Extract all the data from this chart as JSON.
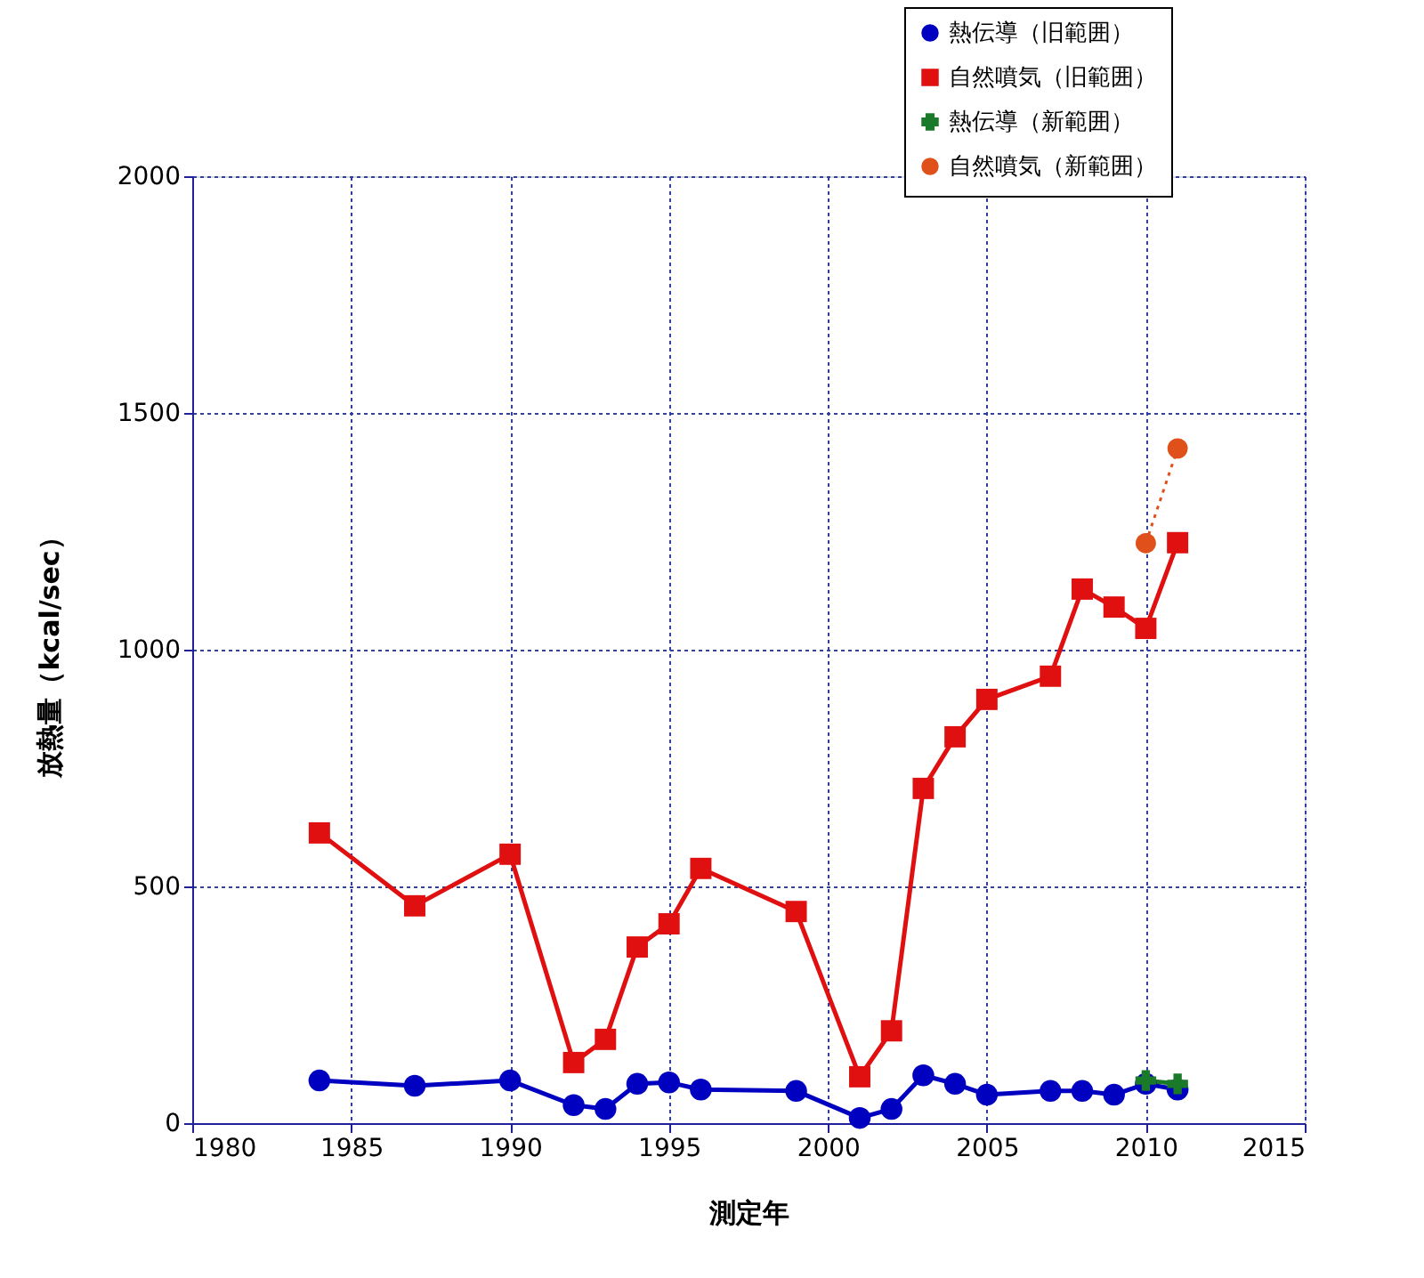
{
  "chart_data": {
    "type": "line",
    "xlabel": "測定年",
    "ylabel": "放熱量（kcal/sec）",
    "xlim": [
      1980,
      2015
    ],
    "xticks": [
      1980,
      1985,
      1990,
      1995,
      2000,
      2005,
      2010,
      2015
    ],
    "ylim": [
      0,
      2000
    ],
    "yticks": [
      0,
      500,
      1000,
      1500,
      2000
    ],
    "grid": true,
    "legend": "top right",
    "series": [
      {
        "name": "熱伝導（旧範囲）",
        "color": "#0000c0",
        "marker": "circle",
        "line_style": "solid",
        "x": [
          1984,
          1987,
          1990,
          1992,
          1993,
          1994,
          1995,
          1996,
          1999,
          2001,
          2002,
          2003,
          2004,
          2005,
          2007,
          2008,
          2009,
          2010,
          2011
        ],
        "values": [
          90,
          79,
          90,
          38,
          30,
          83,
          86,
          71,
          68,
          11,
          30,
          101,
          83,
          60,
          68,
          68,
          60,
          83,
          71
        ]
      },
      {
        "name": "自然噴気（旧範囲）",
        "color": "#e01010",
        "marker": "square",
        "line_style": "solid",
        "x": [
          1984,
          1987,
          1990,
          1992,
          1993,
          1994,
          1995,
          1996,
          1999,
          2001,
          2002,
          2003,
          2004,
          2005,
          2007,
          2008,
          2009,
          2010,
          2011
        ],
        "values": [
          613,
          459,
          568,
          128,
          177,
          372,
          421,
          538,
          447,
          98,
          195,
          707,
          816,
          895,
          944,
          1128,
          1090,
          1045,
          1226
        ]
      },
      {
        "name": "熱伝導（新範囲）",
        "color": "#1a7a2a",
        "marker": "cross",
        "line_style": "solid",
        "x": [
          2010,
          2011
        ],
        "values": [
          90,
          83
        ]
      },
      {
        "name": "自然噴気（新範囲）",
        "color": "#e0501a",
        "marker": "circle",
        "line_style": "dotted",
        "x": [
          2010,
          2011
        ],
        "values": [
          1225,
          1425
        ]
      }
    ]
  }
}
